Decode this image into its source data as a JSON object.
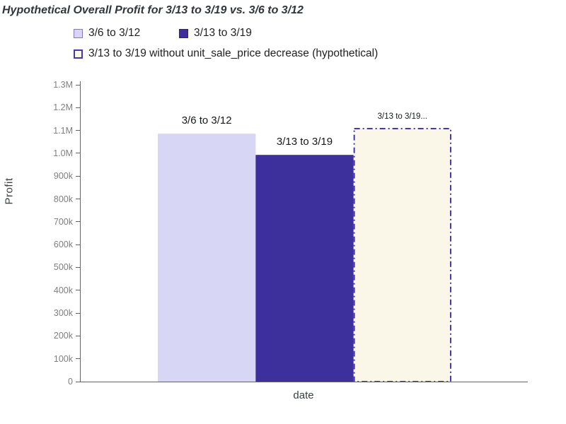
{
  "chart_data": {
    "type": "bar",
    "title": "Hypothetical Overall Profit for 3/13 to 3/19 vs. 3/6 to 3/12",
    "xlabel": "date",
    "ylabel": "Profit",
    "ylim": [
      0,
      1300000
    ],
    "grid": false,
    "legend_position": "top",
    "series": [
      {
        "name": "3/6 to 3/12",
        "value": 1086000,
        "bar_label": "3/6 to 3/12",
        "fill": "#d8d6f5",
        "marker_border": "#8278c0",
        "border": "none",
        "border_style": "solid"
      },
      {
        "name": "3/13 to 3/19",
        "value": 993000,
        "bar_label": "3/13 to 3/19",
        "fill": "#3d309c",
        "marker_border": "#2e2480",
        "border": "none",
        "border_style": "solid"
      },
      {
        "name": "3/13 to 3/19 without unit_sale_price decrease (hypothetical)",
        "value": 1111000,
        "bar_label": "3/13 to 3/19...",
        "fill": "#faf6e8",
        "marker_border": "#4438ab",
        "border": "#4438ab",
        "border_style": "dash-dot"
      }
    ],
    "yticks": {
      "values": [
        0,
        100000,
        200000,
        300000,
        400000,
        500000,
        600000,
        700000,
        800000,
        900000,
        1000000,
        1100000,
        1200000,
        1300000
      ],
      "labels": [
        "0",
        "100k",
        "200k",
        "300k",
        "400k",
        "500k",
        "600k",
        "700k",
        "800k",
        "900k",
        "1.0M",
        "1.1M",
        "1.2M",
        "1.3M"
      ]
    },
    "style": {
      "axis_color": "#60646a",
      "tick_label_color": "#7f7f7f",
      "title_color": "#31363c",
      "bar_label_color": "#16181a",
      "legend_text_color": "#1f1f1f"
    }
  }
}
